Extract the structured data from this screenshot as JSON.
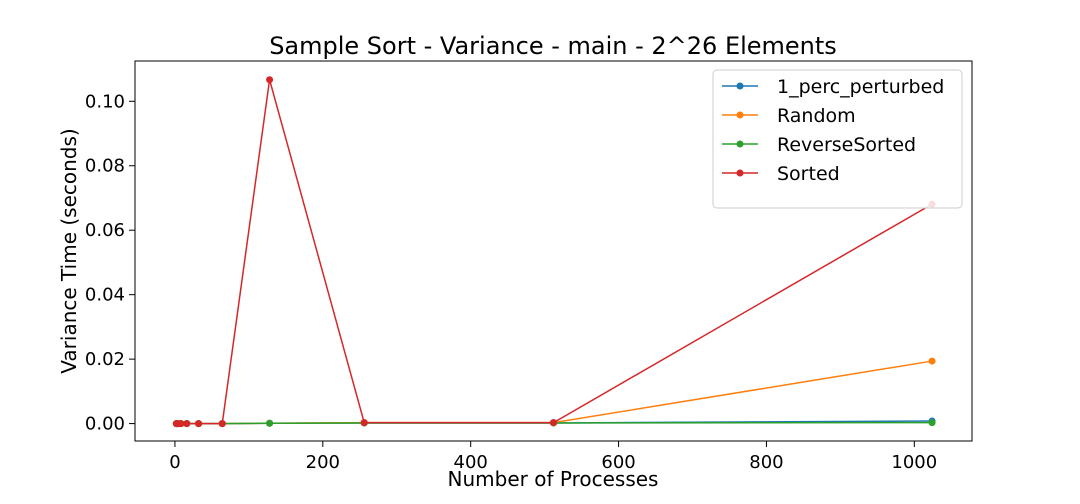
{
  "chart_data": {
    "type": "line",
    "title": "Sample Sort - Variance - main - 2^26 Elements",
    "xlabel": "Number of Processes",
    "ylabel": "Variance Time (seconds)",
    "xlim": [
      -54,
      1078
    ],
    "ylim": [
      -0.0054,
      0.1125
    ],
    "xticks": [
      0,
      200,
      400,
      600,
      800,
      1000
    ],
    "xtick_labels": [
      "0",
      "200",
      "400",
      "600",
      "800",
      "1000"
    ],
    "yticks": [
      0.0,
      0.02,
      0.04,
      0.06,
      0.08,
      0.1
    ],
    "ytick_labels": [
      "0.00",
      "0.02",
      "0.04",
      "0.06",
      "0.08",
      "0.10"
    ],
    "grid": false,
    "legend_position": "top-right",
    "x": [
      2,
      4,
      8,
      16,
      32,
      64,
      128,
      256,
      512,
      1024
    ],
    "series": [
      {
        "name": "1_perc_perturbed",
        "color": "#1f77b4",
        "values": [
          0,
          0,
          0,
          0,
          0,
          0,
          0.0001,
          0.0002,
          0.0002,
          0.0008
        ]
      },
      {
        "name": "Random",
        "color": "#ff7f0e",
        "values": [
          0,
          0,
          0,
          0,
          0,
          0,
          0.0001,
          0.0003,
          0.0003,
          0.0194
        ]
      },
      {
        "name": "ReverseSorted",
        "color": "#2ca02c",
        "values": [
          0,
          0,
          0,
          0,
          0,
          0,
          0.0001,
          0.0002,
          0.0002,
          0.0003
        ]
      },
      {
        "name": "Sorted",
        "color": "#d62728",
        "values": [
          0,
          0,
          0,
          0,
          0,
          0,
          0.1067,
          0.0003,
          0.0003,
          0.0681
        ]
      }
    ]
  }
}
